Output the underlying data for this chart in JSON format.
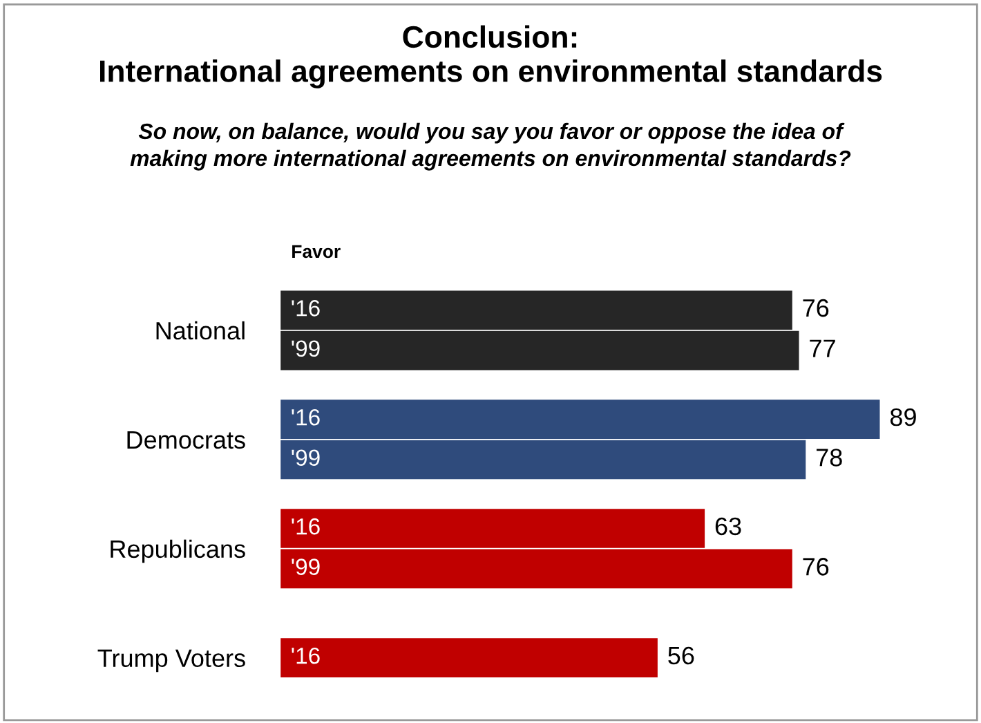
{
  "chart_data": {
    "type": "bar",
    "orientation": "horizontal",
    "title": "Conclusion:\nInternational agreements on environmental standards",
    "subtitle": "So now, on balance, would you say you favor or oppose the idea of\nmaking more international agreements on environmental standards?",
    "annotations": [
      "Favor"
    ],
    "categories": [
      "National",
      "Democrats",
      "Republicans",
      "Trump Voters"
    ],
    "data_labels": true,
    "legend": false,
    "grid": false,
    "series": [
      {
        "name": "'16",
        "colors": [
          "#262626",
          "#2f4b7c",
          "#c00000",
          "#c00000"
        ],
        "values": [
          76,
          89,
          63,
          56
        ]
      },
      {
        "name": "'99",
        "colors": [
          "#262626",
          "#2f4b7c",
          "#c00000",
          "#c00000"
        ],
        "values": [
          77,
          78,
          76,
          null
        ]
      }
    ]
  }
}
